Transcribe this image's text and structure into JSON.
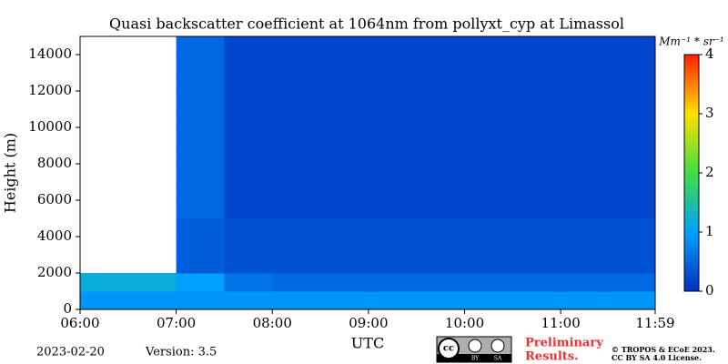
{
  "chart_data": {
    "type": "heatmap",
    "title": "Quasi backscatter coefficient at 1064nm from pollyxt_cyp at Limassol",
    "y_label": "Height (m)",
    "x_label": "UTC",
    "colorbar_label": "Mm⁻¹ * sr⁻¹",
    "x_bins": [
      6,
      6.5,
      7,
      7.5,
      8,
      8.5,
      9,
      9.5,
      10,
      10.5,
      11,
      11.5,
      12
    ],
    "y_bins": [
      0,
      1000,
      2000,
      3000,
      4000,
      5000,
      6000,
      7000,
      8000,
      9000,
      10000,
      11000,
      12000,
      13000,
      14000,
      15000
    ],
    "values": [
      [
        0.9,
        0.9,
        0.9,
        0.9,
        0.9,
        0.9,
        0.9,
        0.9,
        0.9,
        0.9,
        0.9,
        0.9
      ],
      [
        1.2,
        1.2,
        1.0,
        0.6,
        0.5,
        0.5,
        0.5,
        0.5,
        0.5,
        0.5,
        0.5,
        0.5
      ],
      [
        null,
        null,
        0.4,
        0.3,
        0.3,
        0.3,
        0.3,
        0.3,
        0.3,
        0.3,
        0.3,
        0.3
      ],
      [
        null,
        null,
        0.4,
        0.3,
        0.3,
        0.3,
        0.3,
        0.3,
        0.3,
        0.3,
        0.3,
        0.3
      ],
      [
        null,
        null,
        0.4,
        0.3,
        0.3,
        0.3,
        0.3,
        0.3,
        0.3,
        0.3,
        0.3,
        0.3
      ],
      [
        null,
        null,
        0.5,
        0.2,
        0.2,
        0.2,
        0.2,
        0.2,
        0.2,
        0.2,
        0.2,
        0.2
      ],
      [
        null,
        null,
        0.5,
        0.2,
        0.2,
        0.2,
        0.2,
        0.2,
        0.2,
        0.2,
        0.2,
        0.2
      ],
      [
        null,
        null,
        0.5,
        0.2,
        0.2,
        0.2,
        0.2,
        0.2,
        0.2,
        0.2,
        0.2,
        0.2
      ],
      [
        null,
        null,
        0.5,
        0.2,
        0.2,
        0.2,
        0.2,
        0.2,
        0.2,
        0.2,
        0.2,
        0.2
      ],
      [
        null,
        null,
        0.5,
        0.2,
        0.2,
        0.2,
        0.2,
        0.2,
        0.2,
        0.2,
        0.2,
        0.2
      ],
      [
        null,
        null,
        0.5,
        0.2,
        0.2,
        0.2,
        0.2,
        0.2,
        0.2,
        0.2,
        0.2,
        0.2
      ],
      [
        null,
        null,
        0.5,
        0.2,
        0.2,
        0.2,
        0.2,
        0.2,
        0.2,
        0.2,
        0.2,
        0.2
      ],
      [
        null,
        null,
        0.5,
        0.2,
        0.2,
        0.2,
        0.2,
        0.2,
        0.2,
        0.2,
        0.2,
        0.2
      ],
      [
        null,
        null,
        0.5,
        0.2,
        0.2,
        0.2,
        0.2,
        0.2,
        0.2,
        0.2,
        0.2,
        0.2
      ],
      [
        null,
        null,
        0.5,
        0.2,
        0.2,
        0.2,
        0.2,
        0.2,
        0.2,
        0.2,
        0.2,
        0.2
      ]
    ],
    "colormap": [
      "#0030c0",
      "#00a0ff",
      "#40e040",
      "#ffe000",
      "#ff2000"
    ],
    "clim": [
      0,
      4
    ],
    "cticks": [
      0,
      1,
      2,
      3,
      4
    ],
    "xlim": [
      6,
      11.983
    ],
    "xticks": [
      {
        "value": 6,
        "label": "06:00"
      },
      {
        "value": 7,
        "label": "07:00"
      },
      {
        "value": 8,
        "label": "08:00"
      },
      {
        "value": 9,
        "label": "09:00"
      },
      {
        "value": 10,
        "label": "10:00"
      },
      {
        "value": 11,
        "label": "11:00"
      },
      {
        "value": 11.983,
        "label": "11:59"
      }
    ],
    "ylim": [
      0,
      15000
    ],
    "yticks": [
      0,
      2000,
      4000,
      6000,
      8000,
      10000,
      12000,
      14000
    ]
  },
  "footer": {
    "date": "2023-02-20",
    "version": "Version: 3.5",
    "badge": [
      "cc",
      "BY",
      "SA"
    ],
    "preliminary": [
      "Preliminary",
      "Results."
    ],
    "copyright": [
      "© TROPOS & ECoE 2023.",
      "CC BY SA 4.0 License."
    ]
  }
}
